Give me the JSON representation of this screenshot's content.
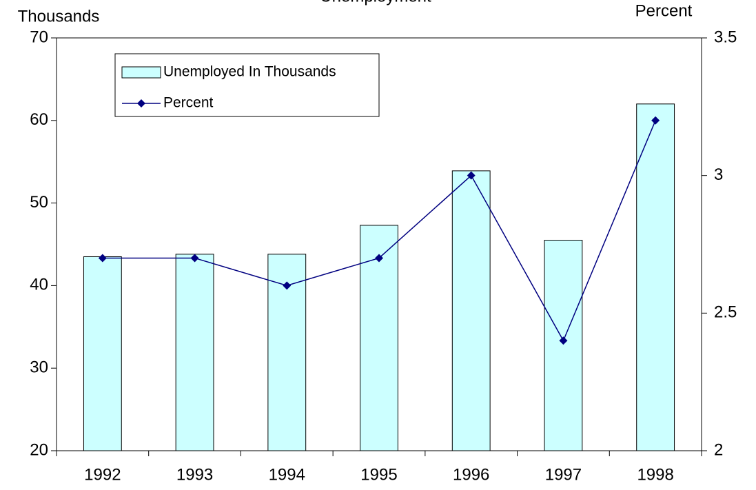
{
  "chart_data": {
    "type": "bar_line",
    "title": "Unemployment",
    "y_label": "Thousands",
    "y2_label": "Percent",
    "categories": [
      "1992",
      "1993",
      "1994",
      "1995",
      "1996",
      "1997",
      "1998"
    ],
    "series": [
      {
        "name": "Unemployed In Thousands",
        "type": "bar",
        "color": "#ccffff",
        "values": [
          43.5,
          43.8,
          43.8,
          47.3,
          53.9,
          45.5,
          62
        ]
      },
      {
        "name": "Percent",
        "type": "line",
        "axis": "y2",
        "color": "#000080",
        "values": [
          2.7,
          2.7,
          2.6,
          2.7,
          3.0,
          2.4,
          3.2
        ]
      }
    ],
    "ylim": [
      20,
      70
    ],
    "yticks": [
      20,
      30,
      40,
      50,
      60,
      70
    ],
    "y2lim": [
      2,
      3.5
    ],
    "y2ticks": [
      2,
      2.5,
      3,
      3.5
    ],
    "grid": false,
    "legend": "top-left"
  }
}
